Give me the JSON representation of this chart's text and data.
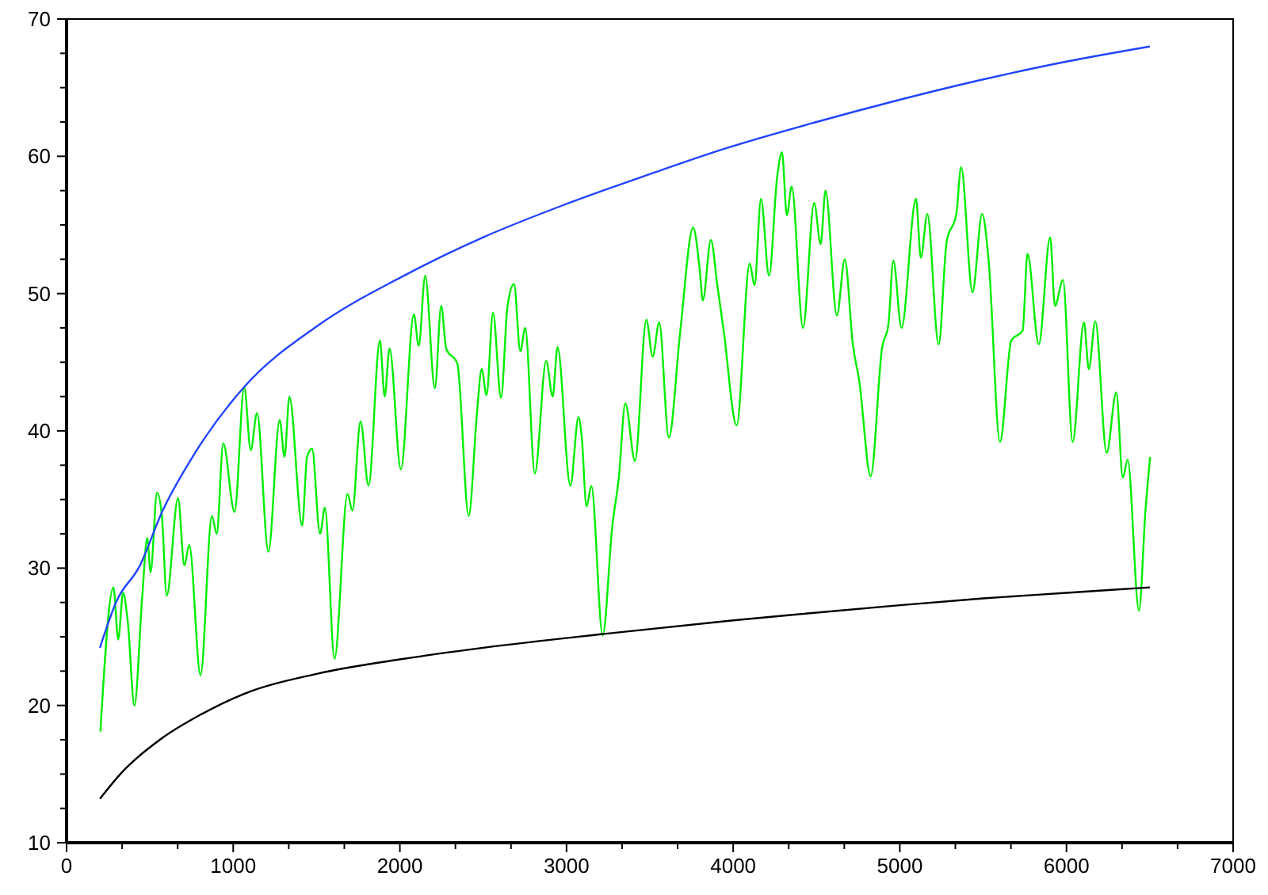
{
  "chart_data": {
    "type": "line",
    "xlim": [
      0,
      7000
    ],
    "ylim": [
      10,
      70
    ],
    "xticks": [
      0,
      {
        "value": 333.33,
        "label": null
      },
      {
        "value": 666.67,
        "label": null
      },
      1000,
      {
        "value": 1333.33,
        "label": null
      },
      {
        "value": 1666.67,
        "label": null
      },
      2000,
      {
        "value": 2333.33,
        "label": null
      },
      {
        "value": 2666.67,
        "label": null
      },
      3000,
      {
        "value": 3333.33,
        "label": null
      },
      {
        "value": 3666.67,
        "label": null
      },
      4000,
      {
        "value": 4333.33,
        "label": null
      },
      {
        "value": 4666.67,
        "label": null
      },
      5000,
      {
        "value": 5333.33,
        "label": null
      },
      {
        "value": 5666.67,
        "label": null
      },
      6000,
      {
        "value": 6333.33,
        "label": null
      },
      {
        "value": 6666.67,
        "label": null
      },
      7000
    ],
    "yticks": [
      10,
      {
        "value": 12.5,
        "label": null
      },
      {
        "value": 15,
        "label": null
      },
      {
        "value": 17.5,
        "label": null
      },
      20,
      {
        "value": 22.5,
        "label": null
      },
      {
        "value": 25,
        "label": null
      },
      {
        "value": 27.5,
        "label": null
      },
      30,
      {
        "value": 32.5,
        "label": null
      },
      {
        "value": 35,
        "label": null
      },
      {
        "value": 37.5,
        "label": null
      },
      40,
      {
        "value": 42.5,
        "label": null
      },
      {
        "value": 45,
        "label": null
      },
      {
        "value": 47.5,
        "label": null
      },
      50,
      {
        "value": 52.5,
        "label": null
      },
      {
        "value": 55,
        "label": null
      },
      {
        "value": 57.5,
        "label": null
      },
      60,
      {
        "value": 62.5,
        "label": null
      },
      {
        "value": 65,
        "label": null
      },
      {
        "value": 67.5,
        "label": null
      },
      70
    ],
    "grid": false,
    "marker": "none",
    "line_style": "solid",
    "series": [
      {
        "color": "#00ee00",
        "x": [
          203,
          281,
          310,
          339,
          368,
          407,
          455,
          484,
          504,
          543,
          572,
          601,
          669,
          707,
          736,
          804,
          872,
          901,
          940,
          1008,
          1066,
          1105,
          1143,
          1211,
          1279,
          1308,
          1337,
          1414,
          1443,
          1473,
          1521,
          1550,
          1608,
          1686,
          1715,
          1764,
          1812,
          1880,
          1909,
          1938,
          2006,
          2084,
          2113,
          2152,
          2210,
          2248,
          2278,
          2345,
          2413,
          2462,
          2491,
          2520,
          2559,
          2607,
          2646,
          2685,
          2723,
          2752,
          2810,
          2878,
          2917,
          2946,
          3023,
          3072,
          3091,
          3120,
          3149,
          3217,
          3275,
          3314,
          3353,
          3411,
          3479,
          3517,
          3556,
          3614,
          3682,
          3760,
          3798,
          3818,
          3866,
          3905,
          3944,
          4021,
          4099,
          4128,
          4167,
          4215,
          4264,
          4293,
          4322,
          4351,
          4419,
          4486,
          4525,
          4554,
          4622,
          4670,
          4718,
          4757,
          4825,
          4893,
          4932,
          4961,
          5010,
          5097,
          5126,
          5165,
          5233,
          5281,
          5339,
          5368,
          5436,
          5494,
          5533,
          5601,
          5669,
          5737,
          5766,
          5834,
          5902,
          5931,
          5979,
          6037,
          6105,
          6134,
          6173,
          6241,
          6299,
          6338,
          6367,
          6435,
          6474,
          6502
        ],
        "values": [
          18.1,
          28.6,
          24.8,
          28.2,
          26,
          20,
          28.1,
          32.2,
          29.7,
          35.5,
          33.8,
          28,
          35.1,
          30.2,
          31.7,
          22.2,
          33.8,
          32.5,
          39.1,
          34.1,
          43.2,
          38.6,
          41.3,
          31.2,
          40.8,
          38.1,
          42.5,
          33.1,
          38.1,
          38.7,
          32.5,
          34.4,
          23.4,
          35.4,
          34.2,
          40.7,
          36,
          46.6,
          42.5,
          46,
          37.2,
          48.5,
          46.2,
          51.3,
          43.1,
          49.1,
          46,
          44.9,
          33.8,
          41.2,
          44.5,
          42.6,
          48.6,
          42.4,
          49.1,
          50.7,
          45.8,
          47.5,
          36.9,
          45.1,
          42.5,
          46.1,
          36,
          41,
          39.6,
          34.5,
          36,
          25.1,
          33.1,
          36.6,
          42,
          37.8,
          48.1,
          45.4,
          47.9,
          39.5,
          47.2,
          54.8,
          51.9,
          49.5,
          53.9,
          50.6,
          47.2,
          40.4,
          52.2,
          50.6,
          56.9,
          51.3,
          58.5,
          60.3,
          55.7,
          57.8,
          47.5,
          56.6,
          53.6,
          57.5,
          48.4,
          52.5,
          46.3,
          43.6,
          36.7,
          46,
          47.8,
          52.4,
          47.5,
          56.9,
          52.6,
          55.8,
          46.3,
          53.8,
          55.8,
          59.2,
          50.1,
          55.8,
          52.4,
          39.2,
          46.6,
          47.3,
          52.9,
          46.3,
          54.1,
          49.1,
          51,
          39.2,
          47.9,
          44.5,
          48,
          38.4,
          42.8,
          36.6,
          37.9,
          26.9,
          34.2,
          38.1
        ]
      },
      {
        "color": "#2244ff",
        "x": [
          200,
          300,
          436,
          577,
          771,
          1066,
          1500,
          2024,
          2500,
          2993,
          3500,
          3961,
          4500,
          4930,
          5500,
          6000,
          6500
        ],
        "values": [
          24.2,
          27.6,
          30.1,
          34.2,
          38.4,
          43.2,
          47.6,
          51.3,
          54.1,
          56.5,
          58.7,
          60.6,
          62.5,
          63.9,
          65.6,
          66.9,
          68
        ]
      },
      {
        "color": "#000000",
        "x": [
          200,
          330,
          571,
          800,
          1056,
          1500,
          2024,
          2500,
          3217,
          4000,
          4446,
          5000,
          5500,
          6000,
          6500
        ],
        "values": [
          13.2,
          15.1,
          17.6,
          19.3,
          20.8,
          22.3,
          23.4,
          24.2,
          25.2,
          26.2,
          26.7,
          27.3,
          27.8,
          28.2,
          28.6
        ]
      }
    ]
  }
}
